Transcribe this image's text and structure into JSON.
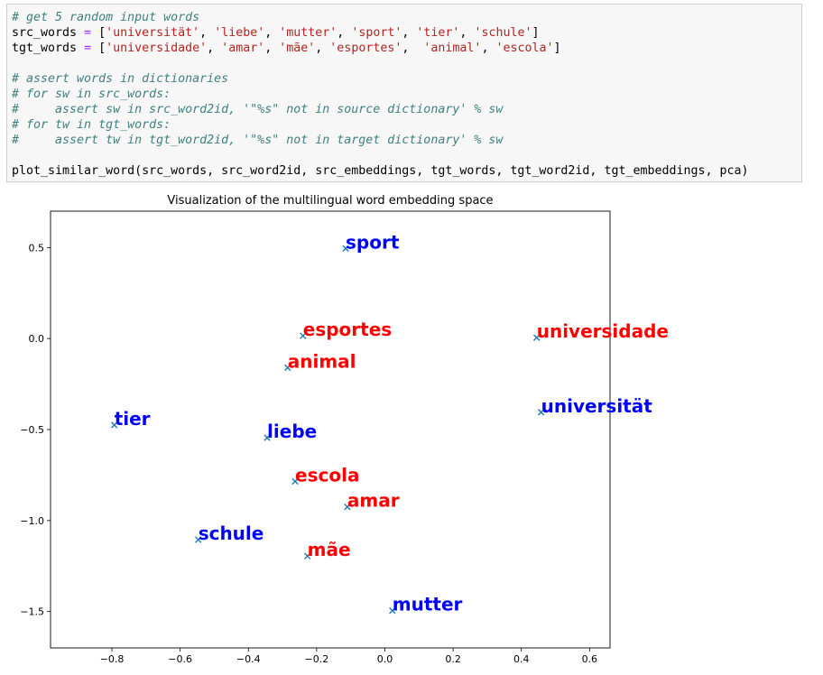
{
  "code_cell": {
    "lines": [
      [
        {
          "t": "c",
          "v": "# get 5 random input words"
        }
      ],
      [
        {
          "t": "n",
          "v": "src_words "
        },
        {
          "t": "o",
          "v": "="
        },
        {
          "t": "n",
          "v": " ["
        },
        {
          "t": "s",
          "v": "'universität'"
        },
        {
          "t": "n",
          "v": ", "
        },
        {
          "t": "s",
          "v": "'liebe'"
        },
        {
          "t": "n",
          "v": ", "
        },
        {
          "t": "s",
          "v": "'mutter'"
        },
        {
          "t": "n",
          "v": ", "
        },
        {
          "t": "s",
          "v": "'sport'"
        },
        {
          "t": "n",
          "v": ", "
        },
        {
          "t": "s",
          "v": "'tier'"
        },
        {
          "t": "n",
          "v": ", "
        },
        {
          "t": "s",
          "v": "'schule'"
        },
        {
          "t": "n",
          "v": "]"
        }
      ],
      [
        {
          "t": "n",
          "v": "tgt_words "
        },
        {
          "t": "o",
          "v": "="
        },
        {
          "t": "n",
          "v": " ["
        },
        {
          "t": "s",
          "v": "'universidade'"
        },
        {
          "t": "n",
          "v": ", "
        },
        {
          "t": "s",
          "v": "'amar'"
        },
        {
          "t": "n",
          "v": ", "
        },
        {
          "t": "s",
          "v": "'mãe'"
        },
        {
          "t": "n",
          "v": ", "
        },
        {
          "t": "s",
          "v": "'esportes'"
        },
        {
          "t": "n",
          "v": ",  "
        },
        {
          "t": "s",
          "v": "'animal'"
        },
        {
          "t": "n",
          "v": ", "
        },
        {
          "t": "s",
          "v": "'escola'"
        },
        {
          "t": "n",
          "v": "]"
        }
      ],
      [
        {
          "t": "n",
          "v": ""
        }
      ],
      [
        {
          "t": "c",
          "v": "# assert words in dictionaries"
        }
      ],
      [
        {
          "t": "c",
          "v": "# for sw in src_words:"
        }
      ],
      [
        {
          "t": "c",
          "v": "#     assert sw in src_word2id, '\"%s\" not in source dictionary' % sw"
        }
      ],
      [
        {
          "t": "c",
          "v": "# for tw in tgt_words:"
        }
      ],
      [
        {
          "t": "c",
          "v": "#     assert tw in tgt_word2id, '\"%s\" not in target dictionary' % sw"
        }
      ],
      [
        {
          "t": "n",
          "v": ""
        }
      ],
      [
        {
          "t": "n",
          "v": "plot_similar_word(src_words, src_word2id, src_embeddings, tgt_words, tgt_word2id, tgt_embeddings, pca)"
        }
      ]
    ]
  },
  "chart_data": {
    "type": "scatter",
    "title": "Visualization of the multilingual word embedding space",
    "xlim": [
      -0.98,
      0.66
    ],
    "ylim": [
      -1.7,
      0.7
    ],
    "x_ticks": [
      -0.8,
      -0.6,
      -0.4,
      -0.2,
      0.0,
      0.2,
      0.4,
      0.6
    ],
    "x_tick_labels": [
      "−0.8",
      "−0.6",
      "−0.4",
      "−0.2",
      "0.0",
      "0.2",
      "0.4",
      "0.6"
    ],
    "y_ticks": [
      0.5,
      0.0,
      -0.5,
      -1.0,
      -1.5
    ],
    "y_tick_labels": [
      "0.5",
      "0.0",
      "−0.5",
      "−1.0",
      "−1.5"
    ],
    "marker_color": "#1f77b4",
    "series": [
      {
        "color": "#0000ff",
        "points": [
          {
            "label": "sport",
            "x": -0.115,
            "y": 0.495
          },
          {
            "label": "universität",
            "x": 0.458,
            "y": -0.405
          },
          {
            "label": "tier",
            "x": -0.793,
            "y": -0.475
          },
          {
            "label": "liebe",
            "x": -0.345,
            "y": -0.545
          },
          {
            "label": "schule",
            "x": -0.547,
            "y": -1.105
          },
          {
            "label": "mutter",
            "x": 0.022,
            "y": -1.495
          }
        ]
      },
      {
        "color": "#ff0000",
        "points": [
          {
            "label": "esportes",
            "x": -0.24,
            "y": 0.015
          },
          {
            "label": "universidade",
            "x": 0.445,
            "y": 0.005
          },
          {
            "label": "animal",
            "x": -0.285,
            "y": -0.16
          },
          {
            "label": "escola",
            "x": -0.263,
            "y": -0.785
          },
          {
            "label": "amar",
            "x": -0.11,
            "y": -0.925
          },
          {
            "label": "mãe",
            "x": -0.227,
            "y": -1.195
          }
        ]
      }
    ]
  }
}
